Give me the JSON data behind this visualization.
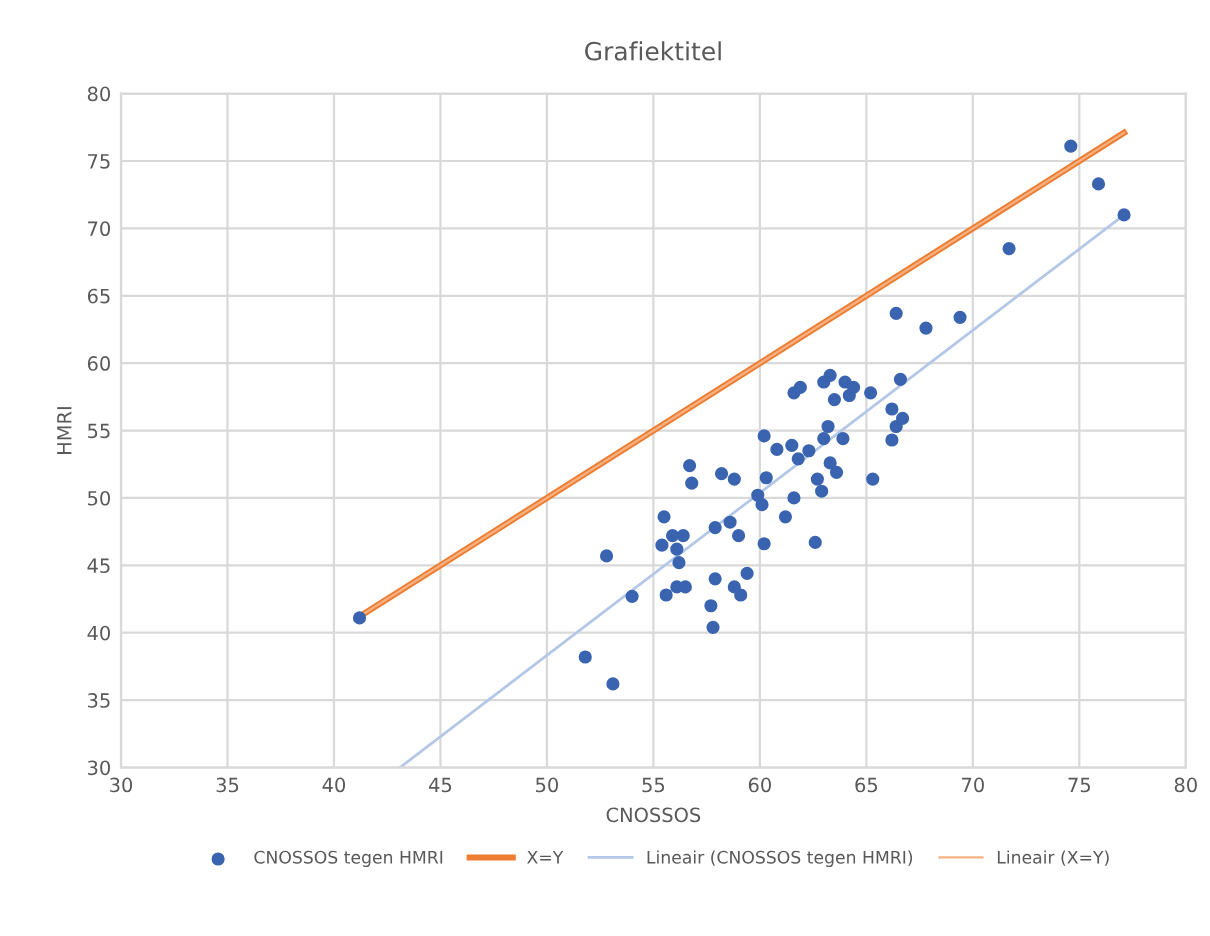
{
  "chart_data": {
    "type": "scatter",
    "title": "Grafiektitel",
    "xlabel": "CNOSSOS",
    "ylabel": "HMRI",
    "xlim": [
      30,
      80
    ],
    "ylim": [
      30,
      80
    ],
    "xticks": [
      30,
      35,
      40,
      45,
      50,
      55,
      60,
      65,
      70,
      75,
      80
    ],
    "yticks": [
      30,
      35,
      40,
      45,
      50,
      55,
      60,
      65,
      70,
      75,
      80
    ],
    "grid": true,
    "legend": "bottom",
    "series": [
      {
        "name": "CNOSSOS tegen HMRI",
        "marker": "circle",
        "color": "#3a64b0",
        "x": [
          41.2,
          52.8,
          51.8,
          53.1,
          54.0,
          74.6,
          75.9,
          77.1,
          71.7,
          66.4,
          67.8,
          69.4,
          66.6,
          61.6,
          61.9,
          63.0,
          63.3,
          64.0,
          64.4,
          63.5,
          64.2,
          65.2,
          66.2,
          66.7,
          66.4,
          66.2,
          60.2,
          60.8,
          61.5,
          62.3,
          61.8,
          63.2,
          63.0,
          63.9,
          63.3,
          63.6,
          56.7,
          56.8,
          58.2,
          58.8,
          60.3,
          62.7,
          65.3,
          59.9,
          60.1,
          61.6,
          62.9,
          61.2,
          62.6,
          60.2,
          55.5,
          55.9,
          56.4,
          55.4,
          56.1,
          56.2,
          57.9,
          58.6,
          59.0,
          59.4,
          57.9,
          58.8,
          59.1,
          57.7,
          57.8,
          56.1,
          56.5,
          55.6
        ],
        "values": [
          41.1,
          45.7,
          38.2,
          36.2,
          42.7,
          76.1,
          73.3,
          71.0,
          68.5,
          63.7,
          62.6,
          63.4,
          58.8,
          57.8,
          58.2,
          58.6,
          59.1,
          58.6,
          58.2,
          57.3,
          57.6,
          57.8,
          56.6,
          55.9,
          55.3,
          54.3,
          54.6,
          53.6,
          53.9,
          53.5,
          52.9,
          55.3,
          54.4,
          54.4,
          52.6,
          51.9,
          52.4,
          51.1,
          51.8,
          51.4,
          51.5,
          51.4,
          51.4,
          50.2,
          49.5,
          50.0,
          50.5,
          48.6,
          46.7,
          46.6,
          48.6,
          47.2,
          47.2,
          46.5,
          46.2,
          45.2,
          47.8,
          48.2,
          47.2,
          44.4,
          44.0,
          43.4,
          42.8,
          42.0,
          40.4,
          43.4,
          43.4,
          42.8
        ]
      },
      {
        "name": "X=Y",
        "type": "line",
        "line_style": "solid",
        "color": "#ed7d31",
        "x": [
          41.2,
          77.1
        ],
        "values": [
          41.2,
          77.1
        ]
      },
      {
        "name": "Lineair (CNOSSOS tegen HMRI)",
        "type": "line",
        "line_style": "solid",
        "color": "#b4c7e7",
        "x": [
          43.1,
          77.1
        ],
        "values": [
          30,
          71.0
        ]
      },
      {
        "name": "Lineair (X=Y)",
        "type": "line",
        "line_style": "solid",
        "color": "#f4b183",
        "x": [
          41.2,
          77.1
        ],
        "values": [
          41.2,
          77.1
        ]
      }
    ]
  }
}
